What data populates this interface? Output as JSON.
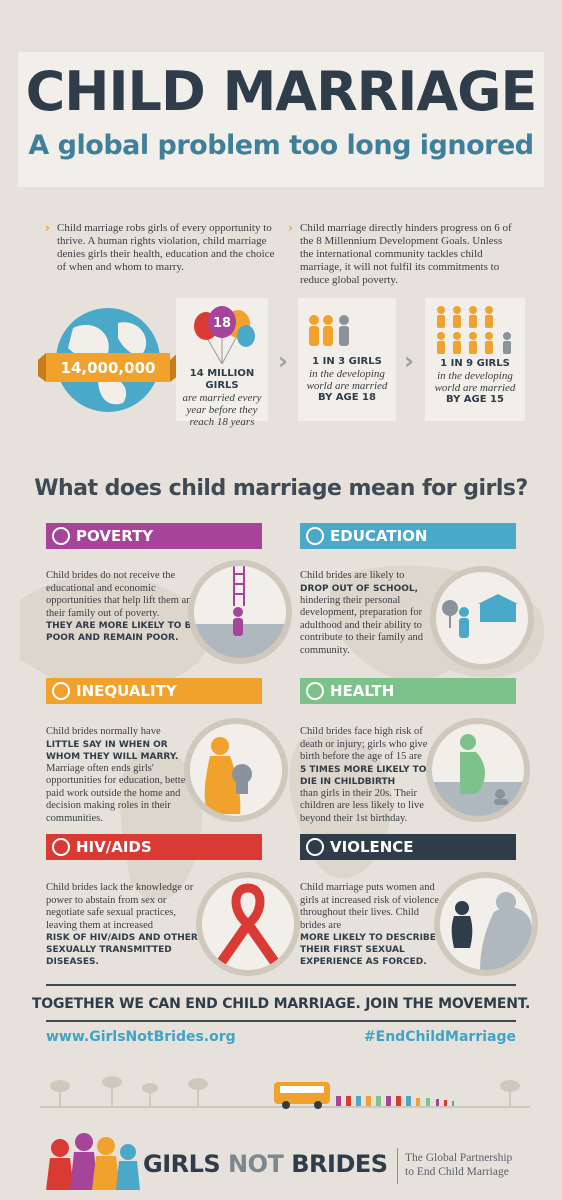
{
  "header": {
    "title": "CHILD MARRIAGE",
    "subtitle": "A global problem too long ignored"
  },
  "intro": [
    "Child marriage robs girls of every opportunity to thrive. A human rights violation, child marriage denies girls their health, education and the choice of when and whom to marry.",
    "Child marriage directly hinders progress on 6 of the 8 Millennium Development Goals. Unless the international community tackles child marriage, it will not fulfil its commitments to reduce global poverty."
  ],
  "stats": {
    "globe_number": "14,000,000",
    "balloon_number": "18",
    "s1_big": "14 MILLION GIRLS",
    "s1_text": "are married every year before they reach 18 years",
    "s2_big": "1 IN 3 GIRLS",
    "s2_text": "in the developing world are married",
    "s2_age": "BY AGE 18",
    "s3_big": "1 IN 9 GIRLS",
    "s3_text": "in the developing world are married",
    "s3_age": "BY AGE 15"
  },
  "section_heading": "What does child marriage mean for girls?",
  "categories": {
    "poverty": {
      "title": "POVERTY",
      "text": "Child brides do not receive the educational and economic opportunities that help lift them and their family out of poverty.",
      "emphasis": "THEY ARE MORE LIKELY TO BE POOR AND REMAIN POOR."
    },
    "education": {
      "title": "EDUCATION",
      "text_pre": "Child brides are likely to",
      "emphasis": "DROP OUT OF SCHOOL,",
      "text_post": "hindering their personal development, preparation for adulthood and their ability to contribute to their family and community."
    },
    "inequality": {
      "title": "INEQUALITY",
      "text_pre": "Child brides normally have",
      "emphasis": "LITTLE SAY IN WHEN OR WHOM THEY WILL MARRY.",
      "text_post": "Marriage often ends girls' opportunities for education, better paid work outside the home and decision making roles in their communities."
    },
    "health": {
      "title": "HEALTH",
      "text_pre": "Child brides face high risk of death or injury; girls who give birth before the age of 15 are",
      "emphasis": "5 TIMES MORE LIKELY TO DIE IN CHILDBIRTH",
      "text_post": "than girls in their 20s. Their children are less likely to live beyond their 1st birthday."
    },
    "hiv": {
      "title": "HIV/AIDS",
      "text": "Child brides lack the knowledge or power to abstain from sex or negotiate safe sexual practices, leaving them at increased",
      "emphasis": "RISK OF HIV/AIDS AND OTHER SEXUALLY TRANSMITTED DISEASES."
    },
    "violence": {
      "title": "VIOLENCE",
      "text": "Child marriage puts women and girls at increased risk of violence throughout their lives. Child brides are",
      "emphasis": "MORE LIKELY TO DESCRIBE THEIR FIRST SEXUAL EXPERIENCE AS FORCED."
    }
  },
  "footer": {
    "together": "TOGETHER WE CAN END CHILD MARRIAGE. JOIN THE MOVEMENT.",
    "url": "www.GirlsNotBrides.org",
    "hashtag": "#EndChildMarriage",
    "logo_girls": "GIRLS",
    "logo_not": "NOT",
    "logo_brides": "BRIDES",
    "tagline_1": "The Global Partnership",
    "tagline_2": "to End Child Marriage"
  },
  "colors": {
    "poverty": "#a6449a",
    "education": "#4aa8c9",
    "inequality": "#f0a22d",
    "health": "#7ec28b",
    "hiv": "#d93a34",
    "violence": "#2f3d4a"
  }
}
